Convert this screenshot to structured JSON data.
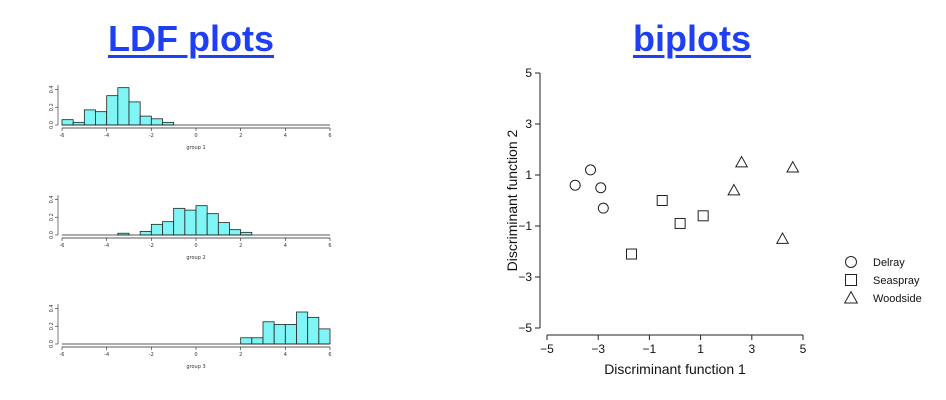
{
  "headings": {
    "ldf": "LDF plots",
    "biplot": "biplots"
  },
  "colors": {
    "heading": "#1f3ff5",
    "bar_fill": "#7ff5f5",
    "bar_stroke": "#222222"
  },
  "chart_data": [
    {
      "type": "bar",
      "subplot": "histogram",
      "xlabel": "group 1",
      "xlim": [
        -6,
        6
      ],
      "ylim": [
        0,
        0.5
      ],
      "x_ticks": [
        -6,
        -4,
        -2,
        0,
        2,
        4,
        6
      ],
      "y_ticks": [
        "0.0",
        "0.2",
        "0.4"
      ],
      "bin_width": 0.5,
      "bin_starts": [
        -6.0,
        -5.5,
        -5.0,
        -4.5,
        -4.0,
        -3.5,
        -3.0,
        -2.5,
        -2.0,
        -1.5
      ],
      "values": [
        0.06,
        0.03,
        0.17,
        0.15,
        0.33,
        0.42,
        0.26,
        0.1,
        0.07,
        0.03
      ]
    },
    {
      "type": "bar",
      "subplot": "histogram",
      "xlabel": "group 2",
      "xlim": [
        -6,
        6
      ],
      "ylim": [
        0,
        0.5
      ],
      "x_ticks": [
        -6,
        -4,
        -2,
        0,
        2,
        4,
        6
      ],
      "y_ticks": [
        "0.0",
        "0.2",
        "0.4"
      ],
      "bin_width": 0.5,
      "bin_starts": [
        -3.5,
        -3.0,
        -2.5,
        -2.0,
        -1.5,
        -1.0,
        -0.5,
        0.0,
        0.5,
        1.0,
        1.5,
        2.0
      ],
      "values": [
        0.02,
        0.0,
        0.04,
        0.12,
        0.15,
        0.3,
        0.28,
        0.33,
        0.24,
        0.14,
        0.06,
        0.03
      ]
    },
    {
      "type": "bar",
      "subplot": "histogram",
      "xlabel": "group 3",
      "xlim": [
        -6,
        6
      ],
      "ylim": [
        0,
        0.5
      ],
      "x_ticks": [
        -6,
        -4,
        -2,
        0,
        2,
        4,
        6
      ],
      "y_ticks": [
        "0.0",
        "0.2",
        "0.4"
      ],
      "bin_width": 0.5,
      "bin_starts": [
        2.0,
        2.5,
        3.0,
        3.5,
        4.0,
        4.5,
        5.0,
        5.5
      ],
      "values": [
        0.07,
        0.07,
        0.25,
        0.22,
        0.22,
        0.36,
        0.3,
        0.17
      ]
    },
    {
      "type": "scatter",
      "xlabel": "Discriminant function 1",
      "ylabel": "Discriminant function 2",
      "xlim": [
        -5,
        5
      ],
      "ylim": [
        -5,
        5
      ],
      "x_ticks": [
        "−5",
        "−3",
        "−1",
        "1",
        "3",
        "5"
      ],
      "y_ticks": [
        "−5",
        "−3",
        "−1",
        "1",
        "3",
        "5"
      ],
      "legend_position": "right",
      "series": [
        {
          "name": "Delray",
          "marker": "circle",
          "points": [
            [
              -3.9,
              0.6
            ],
            [
              -3.3,
              1.2
            ],
            [
              -2.9,
              0.5
            ],
            [
              -2.8,
              -0.3
            ]
          ]
        },
        {
          "name": "Seaspray",
          "marker": "square",
          "points": [
            [
              -1.7,
              -2.1
            ],
            [
              -0.5,
              0.0
            ],
            [
              0.2,
              -0.9
            ],
            [
              1.1,
              -0.6
            ]
          ]
        },
        {
          "name": "Woodside",
          "marker": "triangle",
          "points": [
            [
              2.3,
              0.4
            ],
            [
              2.6,
              1.5
            ],
            [
              4.2,
              -1.5
            ],
            [
              4.6,
              1.3
            ]
          ]
        }
      ]
    }
  ]
}
